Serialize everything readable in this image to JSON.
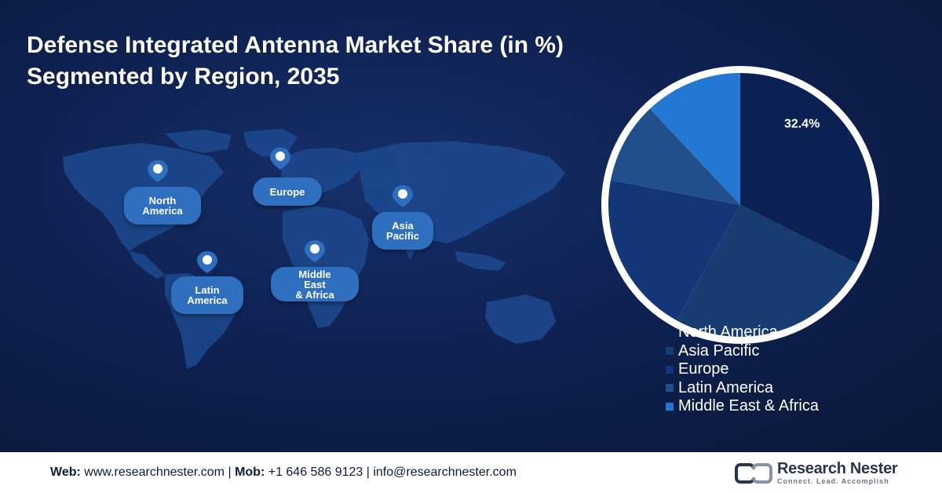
{
  "title_line1": "Defense Integrated Antenna Market Share (in %)",
  "title_line2": "Segmented by Region, 2035",
  "map_labels": {
    "north_america": [
      "North",
      "America"
    ],
    "europe": [
      "Europe"
    ],
    "asia_pacific": [
      "Asia",
      "Pacific"
    ],
    "latin_america": [
      "Latin",
      "America"
    ],
    "middle_east_africa": [
      "Middle",
      "East",
      "& Africa"
    ]
  },
  "chart_data": {
    "type": "pie",
    "categories": [
      "North America",
      "Asia Pacific",
      "Europe",
      "Latin America",
      "Middle East & Africa"
    ],
    "values": [
      32.4,
      25.6,
      20.0,
      10.0,
      12.0
    ],
    "data_labels": [
      "32.4%",
      "",
      "",
      "",
      ""
    ],
    "colors": [
      "#0b2154",
      "#173c72",
      "#123677",
      "#204f8c",
      "#2378d4"
    ],
    "legend_position": "bottom-right"
  },
  "footer": {
    "web_label": "Web:",
    "web_value": "www.researchnester.com",
    "sep1": "|",
    "mob_label": "Mob:",
    "mob_value": "+1 646 586 9123",
    "sep2": "|",
    "email": "info@researchnester.com"
  },
  "logo": {
    "name": "Research Nester",
    "tagline": "Connect. Lead. Accomplish"
  }
}
